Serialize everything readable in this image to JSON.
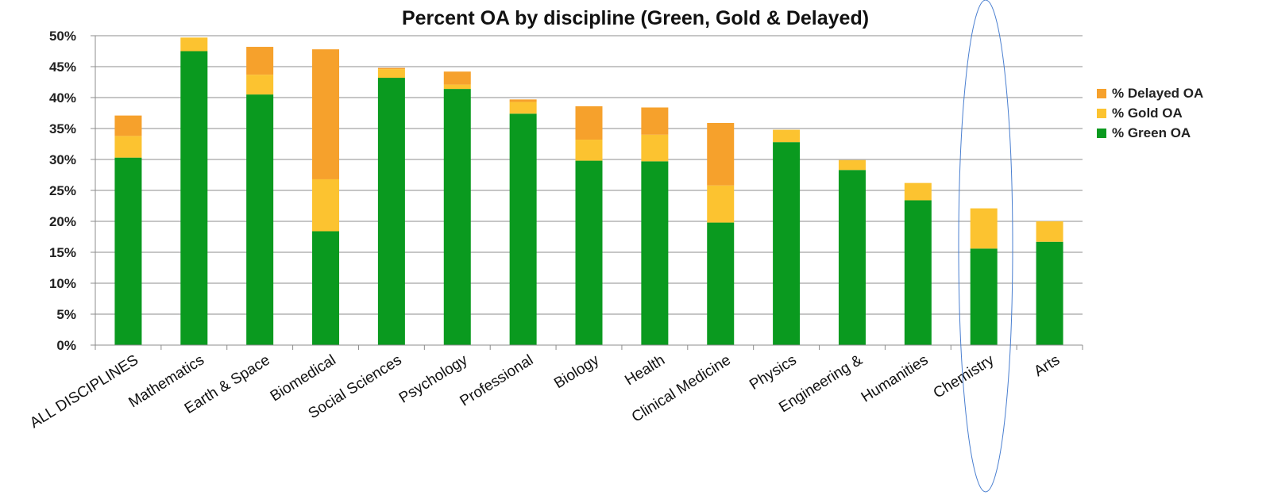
{
  "chart_data": {
    "type": "bar",
    "stacked": true,
    "title": "Percent OA by discipline (Green, Gold & Delayed)",
    "xlabel": "",
    "ylabel": "",
    "ylim": [
      0,
      50
    ],
    "yticks": [
      "0%",
      "5%",
      "10%",
      "15%",
      "20%",
      "25%",
      "30%",
      "35%",
      "40%",
      "45%",
      "50%"
    ],
    "grid": true,
    "legend_position": "right",
    "categories": [
      "ALL DISCIPLINES",
      "Mathematics",
      "Earth & Space",
      "Biomedical",
      "Social Sciences",
      "Psychology",
      "Professional",
      "Biology",
      "Health",
      "Clinical Medicine",
      "Physics",
      "Engineering &",
      "Humanities",
      "Chemistry",
      "Arts"
    ],
    "series": [
      {
        "name": "% Green OA",
        "color": "#0a9a1f",
        "values": [
          30.3,
          47.5,
          40.5,
          18.4,
          43.2,
          41.4,
          37.4,
          29.8,
          29.7,
          19.8,
          32.8,
          28.3,
          23.4,
          15.6,
          16.7
        ]
      },
      {
        "name": "% Gold OA",
        "color": "#fcc330",
        "values": [
          3.5,
          2.2,
          3.2,
          8.4,
          1.4,
          0.7,
          1.9,
          3.4,
          4.3,
          6.0,
          2.0,
          1.6,
          2.8,
          6.5,
          3.3
        ]
      },
      {
        "name": "% Delayed OA",
        "color": "#f6a12c",
        "values": [
          3.3,
          0.0,
          4.5,
          21.0,
          0.2,
          2.1,
          0.4,
          5.4,
          4.4,
          10.1,
          0.0,
          0.0,
          0.0,
          0.0,
          0.0
        ]
      }
    ],
    "legend_order": [
      "% Delayed OA",
      "% Gold OA",
      "% Green OA"
    ]
  }
}
